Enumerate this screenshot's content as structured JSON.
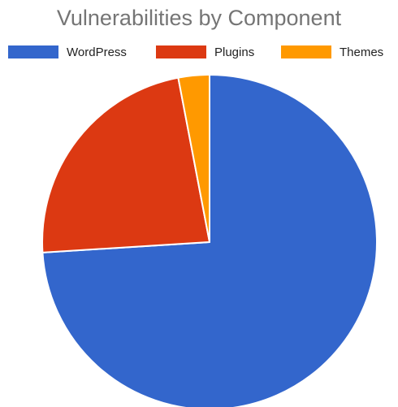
{
  "chart_data": {
    "type": "pie",
    "title": "Vulnerabilities by Component",
    "legend_position": "top",
    "slices": [
      {
        "label": "WordPress",
        "value": 74,
        "color": "#3366cc"
      },
      {
        "label": "Plugins",
        "value": 23,
        "color": "#dc3912"
      },
      {
        "label": "Themes",
        "value": 3,
        "color": "#ff9900"
      }
    ]
  }
}
